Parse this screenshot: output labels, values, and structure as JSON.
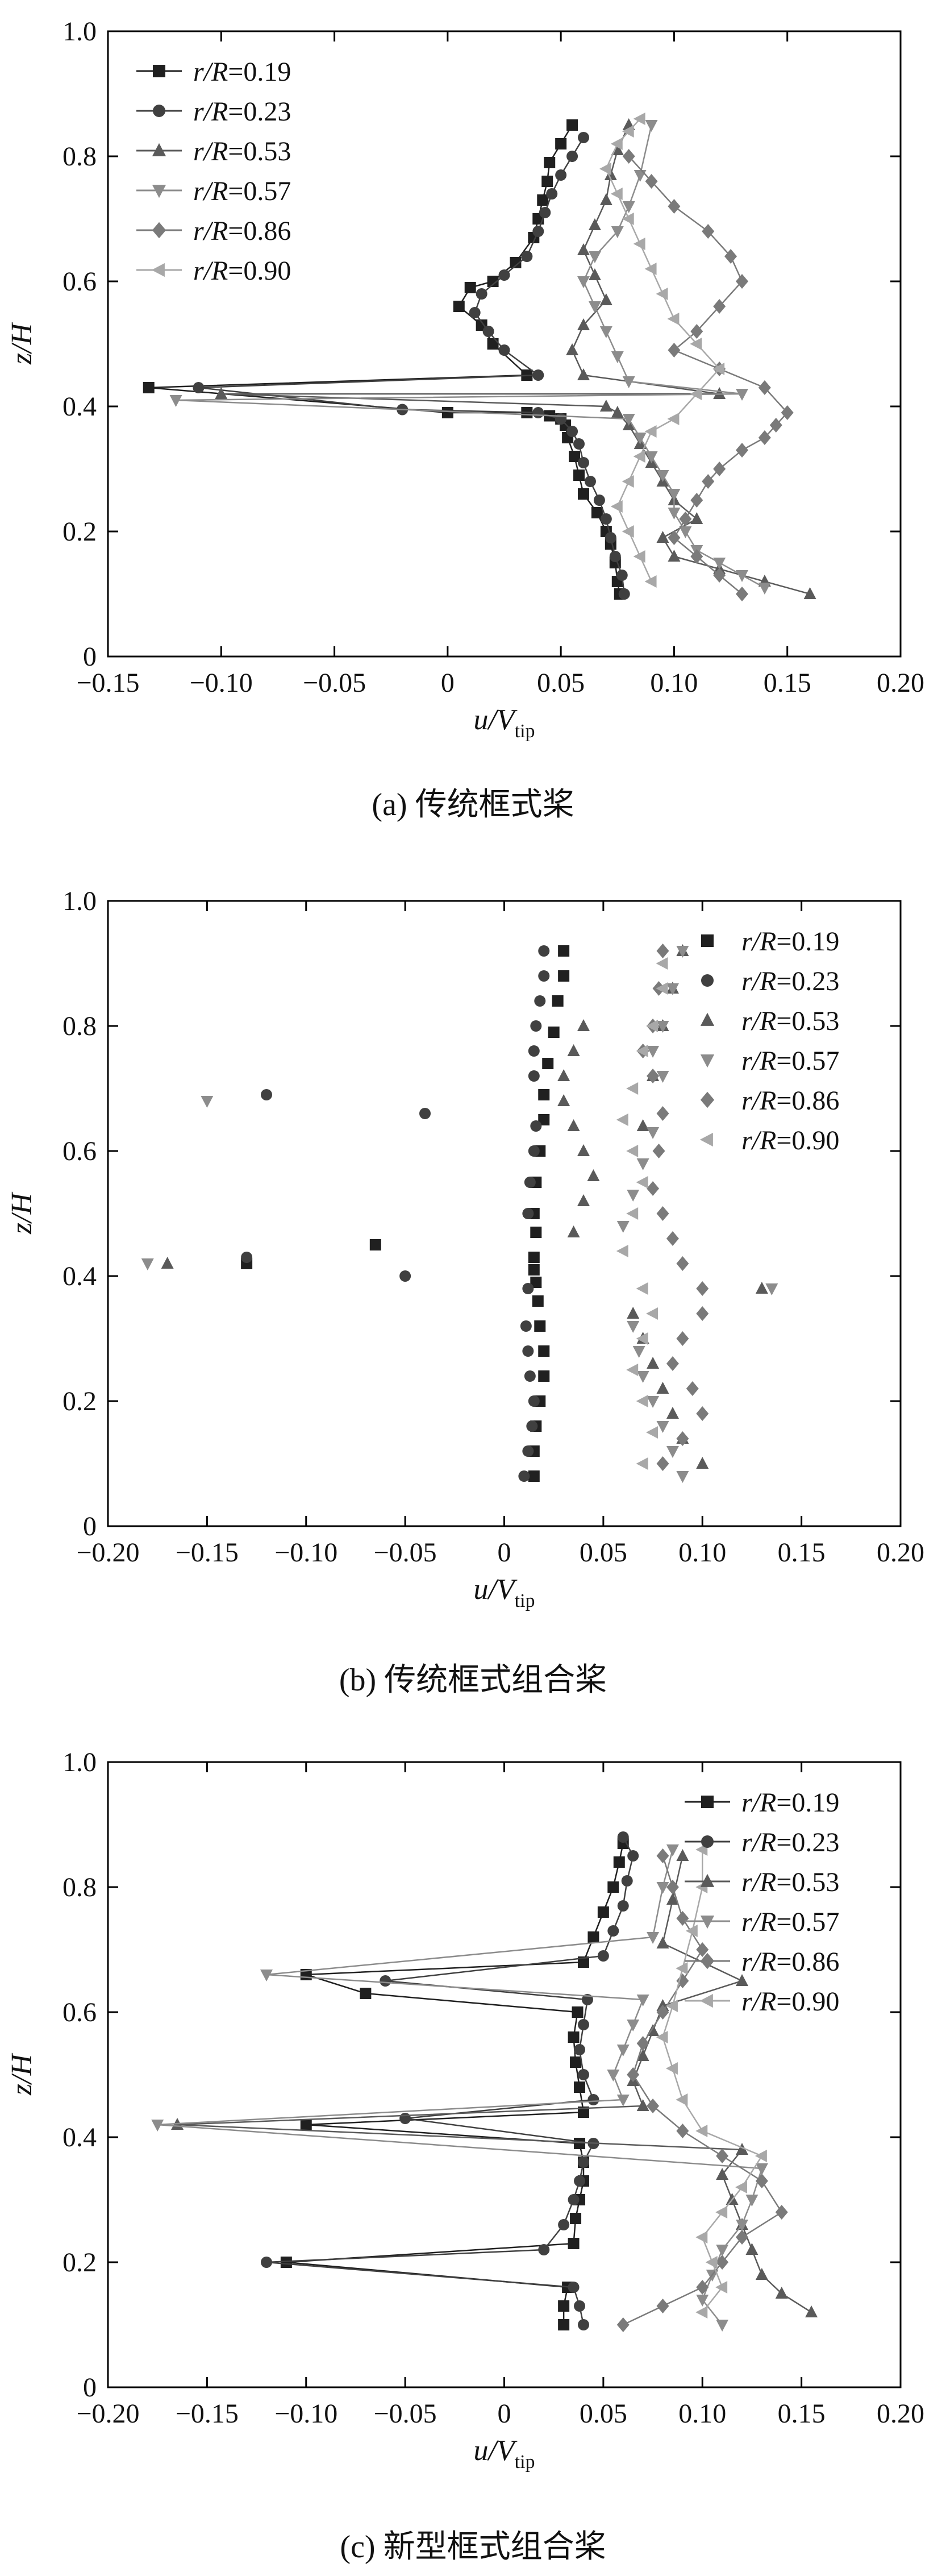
{
  "figure": {
    "panels": [
      {
        "caption": "(a) 传统框式桨"
      },
      {
        "caption": "(b) 传统框式组合桨"
      },
      {
        "caption": "(c) 新型框式组合桨"
      }
    ]
  },
  "colors": {
    "series": [
      "#202020",
      "#404040",
      "#5a5a5a",
      "#8c8c8c",
      "#7a7a7a",
      "#a8a8a8"
    ],
    "axis": "#000000"
  },
  "chart_data": [
    {
      "type": "line",
      "xlabel_italic": "u/V",
      "xlabel_sub": "tip",
      "ylabel": "z/H",
      "xlim": [
        -0.15,
        0.2
      ],
      "ylim": [
        0,
        1.0
      ],
      "xticks": [
        "−0.15",
        "−0.10",
        "−0.05",
        "0",
        "0.05",
        "0.10",
        "0.15",
        "0.20"
      ],
      "xtick_values": [
        -0.15,
        -0.1,
        -0.05,
        0,
        0.05,
        0.1,
        0.15,
        0.2
      ],
      "yticks": [
        "0",
        "0.2",
        "0.4",
        "0.6",
        "0.8",
        "1.0"
      ],
      "ytick_values": [
        0,
        0.2,
        0.4,
        0.6,
        0.8,
        1.0
      ],
      "legend_position": "top-left",
      "series": [
        {
          "name": "r/R=0.19",
          "marker": "square",
          "line": true,
          "x": [
            0.076,
            0.075,
            0.074,
            0.072,
            0.07,
            0.066,
            0.06,
            0.058,
            0.056,
            0.053,
            0.052,
            0.05,
            0.045,
            0.035,
            0.0,
            -0.132,
            0.035,
            0.02,
            0.015,
            0.005,
            0.01,
            0.02,
            0.03,
            0.038,
            0.04,
            0.042,
            0.044,
            0.045,
            0.05,
            0.055
          ],
          "y": [
            0.1,
            0.12,
            0.15,
            0.18,
            0.2,
            0.23,
            0.26,
            0.29,
            0.32,
            0.35,
            0.37,
            0.38,
            0.385,
            0.39,
            0.39,
            0.43,
            0.45,
            0.5,
            0.53,
            0.56,
            0.59,
            0.6,
            0.63,
            0.67,
            0.7,
            0.73,
            0.76,
            0.79,
            0.82,
            0.85
          ]
        },
        {
          "name": "r/R=0.23",
          "marker": "circle",
          "line": true,
          "x": [
            0.078,
            0.077,
            0.074,
            0.072,
            0.07,
            0.067,
            0.063,
            0.06,
            0.058,
            0.055,
            0.05,
            0.04,
            -0.02,
            -0.11,
            0.04,
            0.025,
            0.018,
            0.012,
            0.015,
            0.025,
            0.035,
            0.04,
            0.043,
            0.046,
            0.05,
            0.055,
            0.06
          ],
          "y": [
            0.1,
            0.13,
            0.16,
            0.19,
            0.22,
            0.25,
            0.28,
            0.31,
            0.34,
            0.36,
            0.38,
            0.39,
            0.395,
            0.43,
            0.45,
            0.49,
            0.52,
            0.55,
            0.58,
            0.61,
            0.64,
            0.68,
            0.71,
            0.74,
            0.77,
            0.8,
            0.83
          ]
        },
        {
          "name": "r/R=0.53",
          "marker": "triangle-up",
          "line": true,
          "x": [
            0.16,
            0.14,
            0.12,
            0.1,
            0.095,
            0.11,
            0.1,
            0.095,
            0.09,
            0.085,
            0.08,
            0.075,
            0.07,
            -0.1,
            0.12,
            0.06,
            0.055,
            0.06,
            0.07,
            0.065,
            0.06,
            0.065,
            0.07,
            0.072,
            0.075,
            0.08
          ],
          "y": [
            0.1,
            0.12,
            0.14,
            0.16,
            0.19,
            0.22,
            0.25,
            0.28,
            0.31,
            0.34,
            0.37,
            0.39,
            0.4,
            0.42,
            0.42,
            0.45,
            0.49,
            0.53,
            0.57,
            0.61,
            0.65,
            0.69,
            0.73,
            0.77,
            0.81,
            0.85
          ]
        },
        {
          "name": "r/R=0.57",
          "marker": "triangle-down",
          "line": true,
          "x": [
            0.14,
            0.13,
            0.12,
            0.11,
            0.105,
            0.1,
            0.1,
            0.095,
            0.09,
            0.085,
            0.08,
            -0.12,
            0.13,
            0.08,
            0.075,
            0.07,
            0.065,
            0.06,
            0.065,
            0.075,
            0.08,
            0.085,
            0.09
          ],
          "y": [
            0.11,
            0.13,
            0.15,
            0.17,
            0.2,
            0.23,
            0.26,
            0.29,
            0.32,
            0.35,
            0.38,
            0.41,
            0.42,
            0.44,
            0.48,
            0.52,
            0.56,
            0.6,
            0.64,
            0.68,
            0.72,
            0.77,
            0.85
          ]
        },
        {
          "name": "r/R=0.86",
          "marker": "diamond",
          "line": true,
          "x": [
            0.13,
            0.12,
            0.11,
            0.1,
            0.105,
            0.11,
            0.115,
            0.12,
            0.13,
            0.14,
            0.145,
            0.15,
            0.14,
            0.12,
            0.1,
            0.11,
            0.12,
            0.13,
            0.125,
            0.115,
            0.1,
            0.09,
            0.08
          ],
          "y": [
            0.1,
            0.13,
            0.16,
            0.19,
            0.22,
            0.25,
            0.28,
            0.3,
            0.33,
            0.35,
            0.37,
            0.39,
            0.43,
            0.46,
            0.49,
            0.52,
            0.56,
            0.6,
            0.64,
            0.68,
            0.72,
            0.76,
            0.8
          ]
        },
        {
          "name": "r/R=0.90",
          "marker": "triangle-left",
          "line": true,
          "x": [
            0.09,
            0.085,
            0.08,
            0.075,
            0.08,
            0.085,
            0.09,
            0.1,
            0.11,
            0.12,
            0.11,
            0.1,
            0.095,
            0.09,
            0.085,
            0.08,
            0.075,
            0.07,
            0.075,
            0.08,
            0.085
          ],
          "y": [
            0.12,
            0.16,
            0.2,
            0.24,
            0.28,
            0.32,
            0.36,
            0.38,
            0.42,
            0.46,
            0.5,
            0.54,
            0.58,
            0.62,
            0.66,
            0.7,
            0.74,
            0.78,
            0.82,
            0.84,
            0.86
          ]
        }
      ]
    },
    {
      "type": "line",
      "xlabel_italic": "u/V",
      "xlabel_sub": "tip",
      "ylabel": "z/H",
      "xlim": [
        -0.2,
        0.2
      ],
      "ylim": [
        0,
        1.0
      ],
      "xticks": [
        "−0.20",
        "−0.15",
        "−0.10",
        "−0.05",
        "0",
        "0.05",
        "0.10",
        "0.15",
        "0.20"
      ],
      "xtick_values": [
        -0.2,
        -0.15,
        -0.1,
        -0.05,
        0,
        0.05,
        0.1,
        0.15,
        0.2
      ],
      "yticks": [
        "0",
        "0.2",
        "0.4",
        "0.6",
        "0.8",
        "1.0"
      ],
      "ytick_values": [
        0,
        0.2,
        0.4,
        0.6,
        0.8,
        1.0
      ],
      "legend_position": "top-right",
      "series": [
        {
          "name": "r/R=0.19",
          "marker": "square",
          "line": false,
          "x": [
            0.015,
            0.015,
            0.016,
            0.018,
            0.02,
            0.02,
            0.018,
            0.017,
            0.016,
            0.015,
            0.015,
            0.016,
            -0.065,
            -0.13,
            0.015,
            0.016,
            0.018,
            0.02,
            0.02,
            0.022,
            0.025,
            0.027,
            0.03,
            0.03
          ],
          "y": [
            0.08,
            0.12,
            0.16,
            0.2,
            0.24,
            0.28,
            0.32,
            0.36,
            0.39,
            0.41,
            0.43,
            0.47,
            0.45,
            0.42,
            0.5,
            0.55,
            0.6,
            0.65,
            0.69,
            0.74,
            0.79,
            0.84,
            0.88,
            0.92
          ]
        },
        {
          "name": "r/R=0.23",
          "marker": "circle",
          "line": false,
          "x": [
            0.01,
            0.012,
            0.014,
            0.015,
            0.013,
            0.012,
            0.011,
            0.012,
            -0.05,
            -0.13,
            0.012,
            0.013,
            0.015,
            0.016,
            -0.04,
            -0.12,
            0.015,
            0.015,
            0.016,
            0.018,
            0.02,
            0.02
          ],
          "y": [
            0.08,
            0.12,
            0.16,
            0.2,
            0.24,
            0.28,
            0.32,
            0.38,
            0.4,
            0.43,
            0.5,
            0.55,
            0.6,
            0.64,
            0.66,
            0.69,
            0.72,
            0.76,
            0.8,
            0.84,
            0.88,
            0.92
          ]
        },
        {
          "name": "r/R=0.53",
          "marker": "triangle-up",
          "line": false,
          "x": [
            0.1,
            0.09,
            0.085,
            0.08,
            0.075,
            0.07,
            0.065,
            0.13,
            -0.17,
            0.035,
            0.04,
            0.045,
            0.04,
            0.035,
            0.03,
            0.03,
            0.035,
            0.04,
            0.07,
            0.075,
            0.08,
            0.085,
            0.09
          ],
          "y": [
            0.1,
            0.14,
            0.18,
            0.22,
            0.26,
            0.3,
            0.34,
            0.38,
            0.42,
            0.47,
            0.52,
            0.56,
            0.6,
            0.64,
            0.68,
            0.72,
            0.76,
            0.8,
            0.64,
            0.72,
            0.8,
            0.86,
            0.92
          ]
        },
        {
          "name": "r/R=0.57",
          "marker": "triangle-down",
          "line": false,
          "x": [
            0.09,
            0.085,
            0.08,
            0.075,
            0.07,
            0.068,
            0.065,
            0.135,
            -0.18,
            0.06,
            0.065,
            0.07,
            0.075,
            -0.15,
            0.08,
            0.075,
            0.08,
            0.085,
            0.09
          ],
          "y": [
            0.08,
            0.12,
            0.16,
            0.2,
            0.24,
            0.28,
            0.32,
            0.38,
            0.42,
            0.48,
            0.53,
            0.58,
            0.63,
            0.68,
            0.72,
            0.76,
            0.8,
            0.86,
            0.92
          ]
        },
        {
          "name": "r/R=0.86",
          "marker": "diamond",
          "line": false,
          "x": [
            0.08,
            0.09,
            0.1,
            0.095,
            0.085,
            0.09,
            0.1,
            0.1,
            0.09,
            0.085,
            0.08,
            0.075,
            0.078,
            0.08,
            0.075,
            0.07,
            0.075,
            0.078,
            0.08
          ],
          "y": [
            0.1,
            0.14,
            0.18,
            0.22,
            0.26,
            0.3,
            0.34,
            0.38,
            0.42,
            0.46,
            0.5,
            0.54,
            0.6,
            0.66,
            0.72,
            0.76,
            0.8,
            0.86,
            0.92
          ]
        },
        {
          "name": "r/R=0.90",
          "marker": "triangle-left",
          "line": false,
          "x": [
            0.07,
            0.075,
            0.07,
            0.065,
            0.07,
            0.075,
            0.07,
            0.06,
            0.065,
            0.07,
            0.065,
            0.06,
            0.065,
            0.07,
            0.075,
            0.08,
            0.08
          ],
          "y": [
            0.1,
            0.15,
            0.2,
            0.25,
            0.3,
            0.34,
            0.38,
            0.44,
            0.5,
            0.55,
            0.6,
            0.65,
            0.7,
            0.76,
            0.8,
            0.86,
            0.9
          ]
        }
      ]
    },
    {
      "type": "line",
      "xlabel_italic": "u/V",
      "xlabel_sub": "tip",
      "ylabel": "z/H",
      "xlim": [
        -0.2,
        0.2
      ],
      "ylim": [
        0,
        1.0
      ],
      "xticks": [
        "−0.20",
        "−0.15",
        "−0.10",
        "−0.05",
        "0",
        "0.05",
        "0.10",
        "0.15",
        "0.20"
      ],
      "xtick_values": [
        -0.2,
        -0.15,
        -0.1,
        -0.05,
        0,
        0.05,
        0.1,
        0.15,
        0.2
      ],
      "yticks": [
        "0",
        "0.2",
        "0.4",
        "0.6",
        "0.8",
        "1.0"
      ],
      "ytick_values": [
        0,
        0.2,
        0.4,
        0.6,
        0.8,
        1.0
      ],
      "legend_position": "top-right",
      "series": [
        {
          "name": "r/R=0.19",
          "marker": "square",
          "line": true,
          "x": [
            0.03,
            0.03,
            0.032,
            -0.11,
            0.035,
            0.036,
            0.038,
            0.04,
            0.04,
            0.038,
            -0.1,
            0.04,
            0.038,
            0.036,
            0.035,
            0.037,
            -0.07,
            -0.1,
            0.04,
            0.045,
            0.05,
            0.055,
            0.058,
            0.06
          ],
          "y": [
            0.1,
            0.13,
            0.16,
            0.2,
            0.23,
            0.27,
            0.3,
            0.33,
            0.36,
            0.39,
            0.42,
            0.44,
            0.48,
            0.52,
            0.56,
            0.6,
            0.63,
            0.66,
            0.68,
            0.72,
            0.76,
            0.8,
            0.84,
            0.87
          ]
        },
        {
          "name": "r/R=0.23",
          "marker": "circle",
          "line": true,
          "x": [
            0.04,
            0.038,
            0.035,
            -0.12,
            0.02,
            0.03,
            0.035,
            0.038,
            0.04,
            0.045,
            -0.05,
            0.045,
            0.04,
            0.038,
            0.04,
            0.042,
            -0.06,
            0.05,
            0.055,
            0.06,
            0.062,
            0.065,
            0.06
          ],
          "y": [
            0.1,
            0.13,
            0.16,
            0.2,
            0.22,
            0.26,
            0.3,
            0.33,
            0.36,
            0.39,
            0.43,
            0.46,
            0.5,
            0.54,
            0.58,
            0.62,
            0.65,
            0.69,
            0.73,
            0.77,
            0.81,
            0.85,
            0.88
          ]
        },
        {
          "name": "r/R=0.53",
          "marker": "triangle-up",
          "line": true,
          "x": [
            0.155,
            0.14,
            0.13,
            0.125,
            0.12,
            0.115,
            0.11,
            0.12,
            -0.165,
            0.07,
            0.065,
            0.07,
            0.075,
            0.08,
            0.12,
            0.08,
            0.085,
            0.09
          ],
          "y": [
            0.12,
            0.15,
            0.18,
            0.22,
            0.26,
            0.3,
            0.34,
            0.38,
            0.42,
            0.45,
            0.49,
            0.53,
            0.57,
            0.61,
            0.65,
            0.71,
            0.78,
            0.85
          ]
        },
        {
          "name": "r/R=0.57",
          "marker": "triangle-down",
          "line": true,
          "x": [
            0.11,
            0.1,
            0.105,
            0.11,
            0.12,
            0.125,
            0.13,
            -0.175,
            0.06,
            0.055,
            0.06,
            0.065,
            0.07,
            -0.12,
            0.075,
            0.08,
            0.085
          ],
          "y": [
            0.1,
            0.14,
            0.18,
            0.22,
            0.26,
            0.3,
            0.35,
            0.42,
            0.46,
            0.5,
            0.54,
            0.58,
            0.62,
            0.66,
            0.72,
            0.8,
            0.86
          ]
        },
        {
          "name": "r/R=0.86",
          "marker": "diamond",
          "line": true,
          "x": [
            0.06,
            0.08,
            0.1,
            0.11,
            0.12,
            0.14,
            0.13,
            0.11,
            0.09,
            0.075,
            0.065,
            0.07,
            0.08,
            0.09,
            0.1,
            0.09,
            0.085,
            0.08
          ],
          "y": [
            0.1,
            0.13,
            0.16,
            0.2,
            0.24,
            0.28,
            0.33,
            0.37,
            0.41,
            0.45,
            0.5,
            0.55,
            0.6,
            0.65,
            0.7,
            0.75,
            0.8,
            0.85
          ]
        },
        {
          "name": "r/R=0.90",
          "marker": "triangle-left",
          "line": true,
          "x": [
            0.1,
            0.11,
            0.105,
            0.1,
            0.11,
            0.12,
            0.13,
            0.1,
            0.09,
            0.085,
            0.08,
            0.085,
            0.09,
            0.095,
            0.1,
            0.1
          ],
          "y": [
            0.12,
            0.16,
            0.2,
            0.24,
            0.28,
            0.32,
            0.37,
            0.41,
            0.46,
            0.51,
            0.56,
            0.61,
            0.67,
            0.73,
            0.8,
            0.86
          ]
        }
      ]
    }
  ]
}
